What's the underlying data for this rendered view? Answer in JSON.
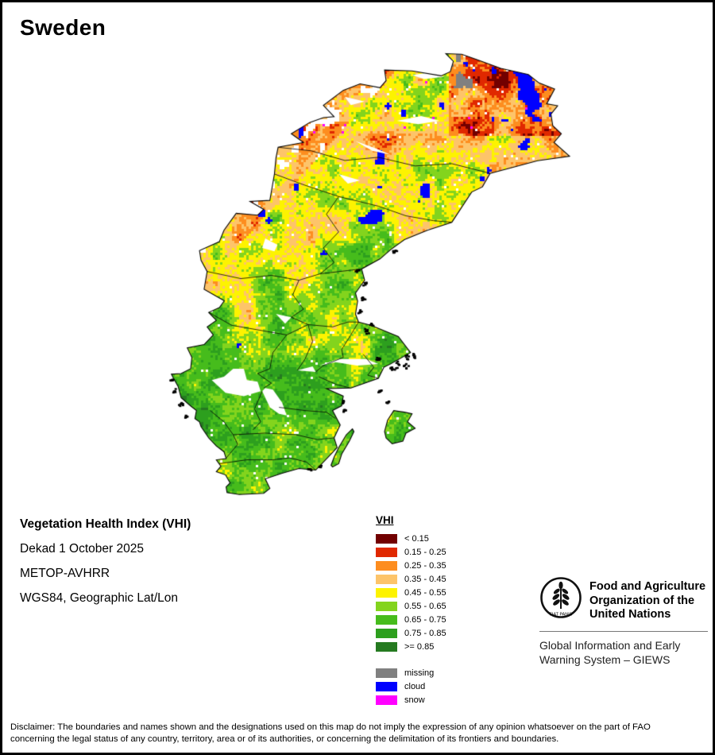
{
  "header": {
    "title": "Sweden"
  },
  "info": {
    "title": "Vegetation Health Index (VHI)",
    "dekad": "Dekad 1 October 2025",
    "sensor": "METOP-AVHRR",
    "projection": "WGS84, Geographic Lat/Lon"
  },
  "legend": {
    "title": "VHI",
    "classes": [
      {
        "label": "< 0.15",
        "color": "#720000"
      },
      {
        "label": "0.15 - 0.25",
        "color": "#e02800"
      },
      {
        "label": "0.25 - 0.35",
        "color": "#fd8d1f"
      },
      {
        "label": "0.35 - 0.45",
        "color": "#fdc46a"
      },
      {
        "label": "0.45 - 0.55",
        "color": "#fdf300"
      },
      {
        "label": "0.55 - 0.65",
        "color": "#83d41d"
      },
      {
        "label": "0.65 - 0.75",
        "color": "#46bc1c"
      },
      {
        "label": "0.75 - 0.85",
        "color": "#2d9f1e"
      },
      {
        "label": ">= 0.85",
        "color": "#257a20"
      }
    ],
    "flags": [
      {
        "label": "missing",
        "color": "#808080"
      },
      {
        "label": "cloud",
        "color": "#0000ff"
      },
      {
        "label": "snow",
        "color": "#ff00ff"
      }
    ]
  },
  "fao": {
    "org_lines": [
      "Food and Agriculture",
      "Organization of the",
      "United Nations"
    ],
    "motto": "FIAT PANIS",
    "giews_lines": [
      "Global Information and Early",
      "Warning System – GIEWS"
    ]
  },
  "disclaimer_lines": [
    "Disclaimer: The boundaries and names shown and the designations used on this map do not imply the expression of any opinion whatsoever on the part of FAO",
    "concerning the legal status of any country, territory, area or of its authorities, or concerning the delimitation of its frontiers and boundaries."
  ],
  "map": {
    "country": "Sweden",
    "background_color": "#ffffff",
    "outline_color": "#000000",
    "nodata_color": "#ffffff"
  }
}
